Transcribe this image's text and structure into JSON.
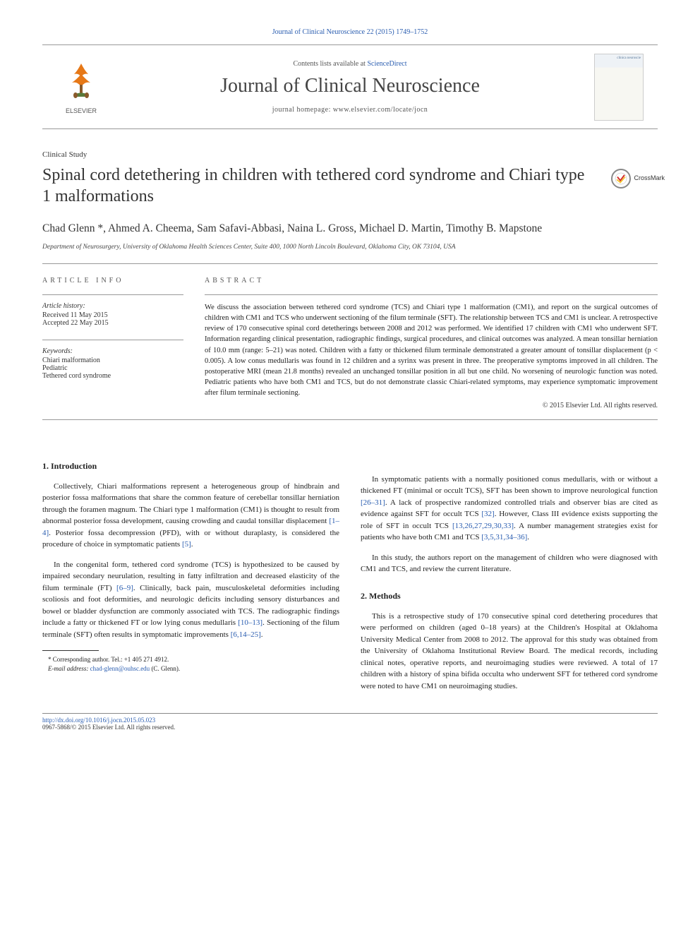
{
  "header": {
    "citation": "Journal of Clinical Neuroscience 22 (2015) 1749–1752",
    "contents_prefix": "Contents lists available at ",
    "contents_link": "ScienceDirect",
    "journal_name": "Journal of Clinical Neuroscience",
    "homepage_prefix": "journal homepage: ",
    "homepage_url": "www.elsevier.com/locate/jocn",
    "publisher": "ELSEVIER",
    "cover_top": "clinica neuroscie",
    "cover_title": ""
  },
  "article": {
    "type": "Clinical Study",
    "title": "Spinal cord detethering in children with tethered cord syndrome and Chiari type 1 malformations",
    "crossmark": "CrossMark",
    "authors": "Chad Glenn *, Ahmed A. Cheema, Sam Safavi-Abbasi, Naina L. Gross, Michael D. Martin, Timothy B. Mapstone",
    "affiliation": "Department of Neurosurgery, University of Oklahoma Health Sciences Center, Suite 400, 1000 North Lincoln Boulevard, Oklahoma City, OK 73104, USA"
  },
  "info": {
    "label": "article info",
    "history_label": "Article history:",
    "received": "Received 11 May 2015",
    "accepted": "Accepted 22 May 2015",
    "keywords_label": "Keywords:",
    "keywords": [
      "Chiari malformation",
      "Pediatric",
      "Tethered cord syndrome"
    ]
  },
  "abstract": {
    "label": "abstract",
    "text": "We discuss the association between tethered cord syndrome (TCS) and Chiari type 1 malformation (CM1), and report on the surgical outcomes of children with CM1 and TCS who underwent sectioning of the filum terminale (SFT). The relationship between TCS and CM1 is unclear. A retrospective review of 170 consecutive spinal cord detetherings between 2008 and 2012 was performed. We identified 17 children with CM1 who underwent SFT. Information regarding clinical presentation, radiographic findings, surgical procedures, and clinical outcomes was analyzed. A mean tonsillar herniation of 10.0 mm (range: 5–21) was noted. Children with a fatty or thickened filum terminale demonstrated a greater amount of tonsillar displacement (p < 0.005). A low conus medullaris was found in 12 children and a syrinx was present in three. The preoperative symptoms improved in all children. The postoperative MRI (mean 21.8 months) revealed an unchanged tonsillar position in all but one child. No worsening of neurologic function was noted. Pediatric patients who have both CM1 and TCS, but do not demonstrate classic Chiari-related symptoms, may experience symptomatic improvement after filum terminale sectioning.",
    "copyright": "© 2015 Elsevier Ltd. All rights reserved."
  },
  "body": {
    "intro_heading": "1. Introduction",
    "intro_p1": "Collectively, Chiari malformations represent a heterogeneous group of hindbrain and posterior fossa malformations that share the common feature of cerebellar tonsillar herniation through the foramen magnum. The Chiari type 1 malformation (CM1) is thought to result from abnormal posterior fossa development, causing crowding and caudal tonsillar displacement [1–4]. Posterior fossa decompression (PFD), with or without duraplasty, is considered the procedure of choice in symptomatic patients [5].",
    "intro_p2": "In the congenital form, tethered cord syndrome (TCS) is hypothesized to be caused by impaired secondary neurulation, resulting in fatty infiltration and decreased elasticity of the filum terminale (FT) [6–9]. Clinically, back pain, musculoskeletal deformities including scoliosis and foot deformities, and neurologic deficits including sensory disturbances and bowel or bladder dysfunction are commonly associated with TCS. The radiographic findings include a fatty or thickened FT or low lying conus medullaris [10–13]. Sectioning of the filum terminale (SFT) often results in symptomatic improvements [6,14–25].",
    "intro_p3": "In symptomatic patients with a normally positioned conus medullaris, with or without a thickened FT (minimal or occult TCS), SFT has been shown to improve neurological function [26–31]. A lack of prospective randomized controlled trials and observer bias are cited as evidence against SFT for occult TCS [32]. However, Class III evidence exists supporting the role of SFT in occult TCS [13,26,27,29,30,33]. A number management strategies exist for patients who have both CM1 and TCS [3,5,31,34–36].",
    "intro_p4": "In this study, the authors report on the management of children who were diagnosed with CM1 and TCS, and review the current literature.",
    "methods_heading": "2. Methods",
    "methods_p1": "This is a retrospective study of 170 consecutive spinal cord detethering procedures that were performed on children (aged 0–18 years) at the Children's Hospital at Oklahoma University Medical Center from 2008 to 2012. The approval for this study was obtained from the University of Oklahoma Institutional Review Board. The medical records, including clinical notes, operative reports, and neuroimaging studies were reviewed. A total of 17 children with a history of spina bifida occulta who underwent SFT for tethered cord syndrome were noted to have CM1 on neuroimaging studies."
  },
  "footnote": {
    "corresponding": "* Corresponding author. Tel.: +1 405 271 4912.",
    "email_label": "E-mail address:",
    "email": "chad-glenn@ouhsc.edu",
    "email_suffix": "(C. Glenn)."
  },
  "footer": {
    "doi": "http://dx.doi.org/10.1016/j.jocn.2015.05.023",
    "issn_copyright": "0967-5868/© 2015 Elsevier Ltd. All rights reserved."
  },
  "colors": {
    "link": "#2a5db0",
    "text": "#333333",
    "rule": "#999999"
  }
}
